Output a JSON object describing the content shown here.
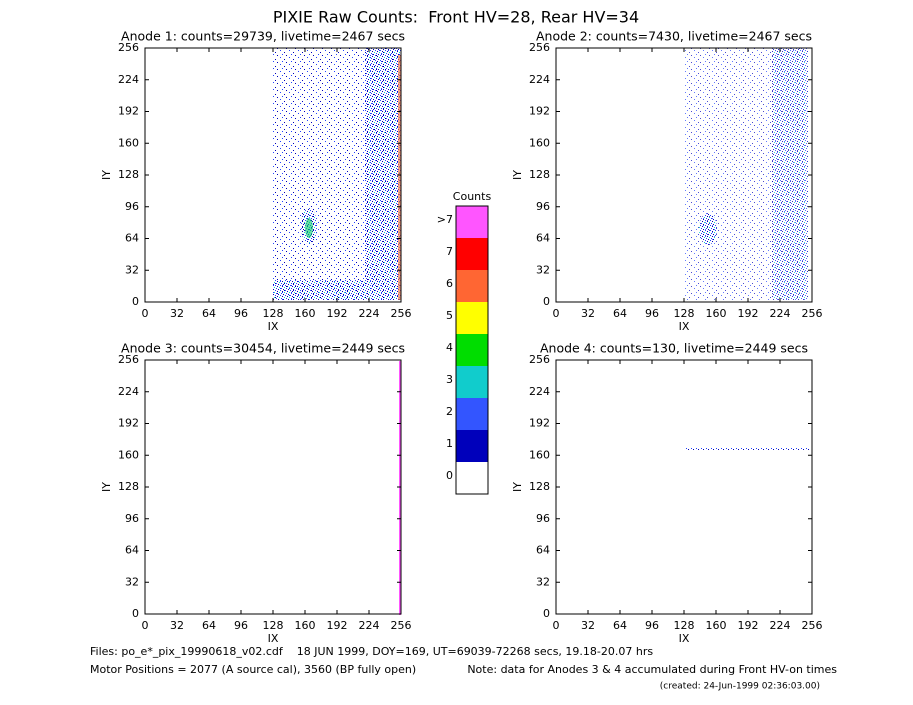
{
  "title": "PIXIE Raw Counts:  Front HV=28, Rear HV=34",
  "chart_data": [
    {
      "type": "heatmap",
      "title": "Anode 1: counts=29739, livetime=2467 secs",
      "xlabel": "IX",
      "ylabel": "IY",
      "xlim": [
        0,
        256
      ],
      "ylim": [
        0,
        256
      ],
      "xticks": [
        0,
        32,
        64,
        96,
        128,
        160,
        192,
        224,
        256
      ],
      "yticks": [
        0,
        32,
        64,
        96,
        128,
        160,
        192,
        224,
        256
      ]
    },
    {
      "type": "heatmap",
      "title": "Anode 2: counts=7430, livetime=2467 secs",
      "xlabel": "IX",
      "ylabel": "IY",
      "xlim": [
        0,
        256
      ],
      "ylim": [
        0,
        256
      ],
      "xticks": [
        0,
        32,
        64,
        96,
        128,
        160,
        192,
        224,
        256
      ],
      "yticks": [
        0,
        32,
        64,
        96,
        128,
        160,
        192,
        224,
        256
      ]
    },
    {
      "type": "heatmap",
      "title": "Anode 3: counts=30454, livetime=2449 secs",
      "xlabel": "IX",
      "ylabel": "IY",
      "xlim": [
        0,
        256
      ],
      "ylim": [
        0,
        256
      ],
      "xticks": [
        0,
        32,
        64,
        96,
        128,
        160,
        192,
        224,
        256
      ],
      "yticks": [
        0,
        32,
        64,
        96,
        128,
        160,
        192,
        224,
        256
      ]
    },
    {
      "type": "heatmap",
      "title": "Anode 4: counts=130, livetime=2449 secs",
      "xlabel": "IX",
      "ylabel": "IY",
      "xlim": [
        0,
        256
      ],
      "ylim": [
        0,
        256
      ],
      "xticks": [
        0,
        32,
        64,
        96,
        128,
        160,
        192,
        224,
        256
      ],
      "yticks": [
        0,
        32,
        64,
        96,
        128,
        160,
        192,
        224,
        256
      ]
    }
  ],
  "colorbar": {
    "title": "Counts",
    "labels": [
      ">7",
      "7",
      "6",
      "5",
      "4",
      "3",
      "2",
      "1",
      "0"
    ],
    "colors": [
      "#ff55ff",
      "#ff0000",
      "#ff6633",
      "#ffff00",
      "#00dd00",
      "#11cccc",
      "#3355ff",
      "#0000bb",
      "#ffffff"
    ]
  },
  "footer": {
    "files": "Files: po_e*_pix_19990618_v02.cdf    18 JUN 1999, DOY=169, UT=69039-72268 secs, 19.18-20.07 hrs",
    "motor": "Motor Positions = 2077 (A source cal), 3560 (BP fully open)",
    "note": "Note: data for Anodes 3 & 4 accumulated during Front HV-on times",
    "created": "(created: 24-Jun-1999 02:36:03.00)"
  }
}
